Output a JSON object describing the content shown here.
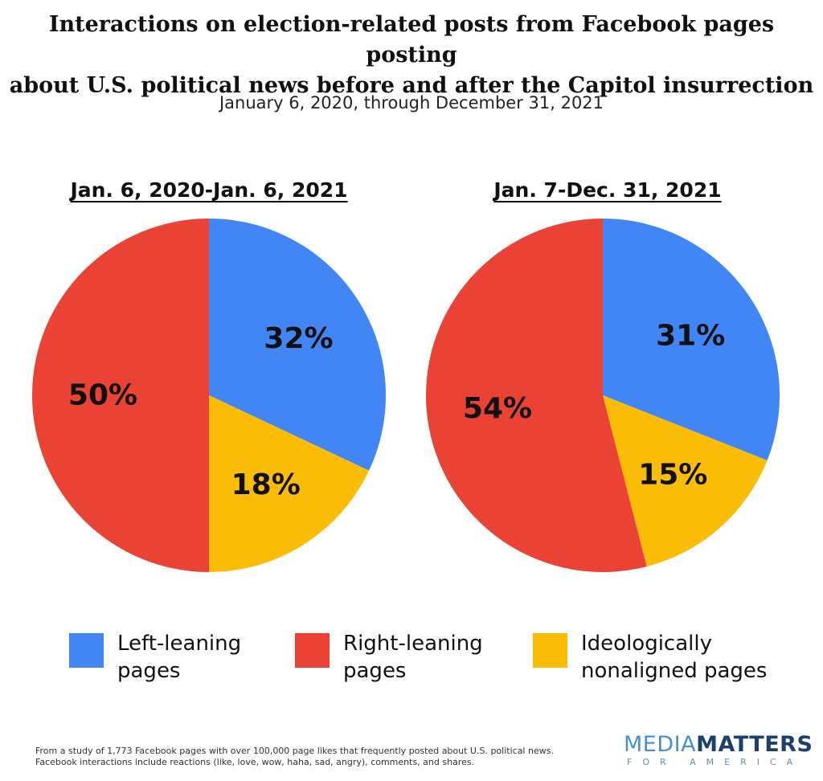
{
  "title_line1": "Interactions on election-related posts from Facebook pages posting",
  "title_line2": "about U.S. political news before and after the Capitol insurrection",
  "subtitle": "January 6, 2020, through December 31, 2021",
  "legend": [
    {
      "line1": "Left-leaning",
      "line2": "pages",
      "color": "#4285f4"
    },
    {
      "line1": "Right-leaning",
      "line2": "pages",
      "color": "#ea4335"
    },
    {
      "line1": "Ideologically",
      "line2": "nonaligned pages",
      "color": "#fbbc05"
    }
  ],
  "footnote_line1": "From a study of 1,773 Facebook pages with over 100,000 page likes that frequently posted about U.S. political news.",
  "footnote_line2": "Facebook interactions include reactions (like, love, wow, haha, sad, angry), comments, and shares.",
  "logo": {
    "part1": "MEDIA",
    "part2": "MATTERS",
    "sub": "FOR AMERICA"
  },
  "chart_data": [
    {
      "type": "pie",
      "title": "Jan. 6, 2020-Jan. 6, 2021",
      "slices": [
        {
          "category": "Left-leaning pages",
          "value": 32,
          "label": "32%",
          "color": "#4285f4"
        },
        {
          "category": "Ideologically nonaligned pages",
          "value": 18,
          "label": "18%",
          "color": "#fbbc05"
        },
        {
          "category": "Right-leaning pages",
          "value": 50,
          "label": "50%",
          "color": "#ea4335"
        }
      ]
    },
    {
      "type": "pie",
      "title": "Jan. 7-Dec. 31, 2021",
      "slices": [
        {
          "category": "Left-leaning pages",
          "value": 31,
          "label": "31%",
          "color": "#4285f4"
        },
        {
          "category": "Ideologically nonaligned pages",
          "value": 15,
          "label": "15%",
          "color": "#fbbc05"
        },
        {
          "category": "Right-leaning pages",
          "value": 54,
          "label": "54%",
          "color": "#ea4335"
        }
      ]
    }
  ]
}
